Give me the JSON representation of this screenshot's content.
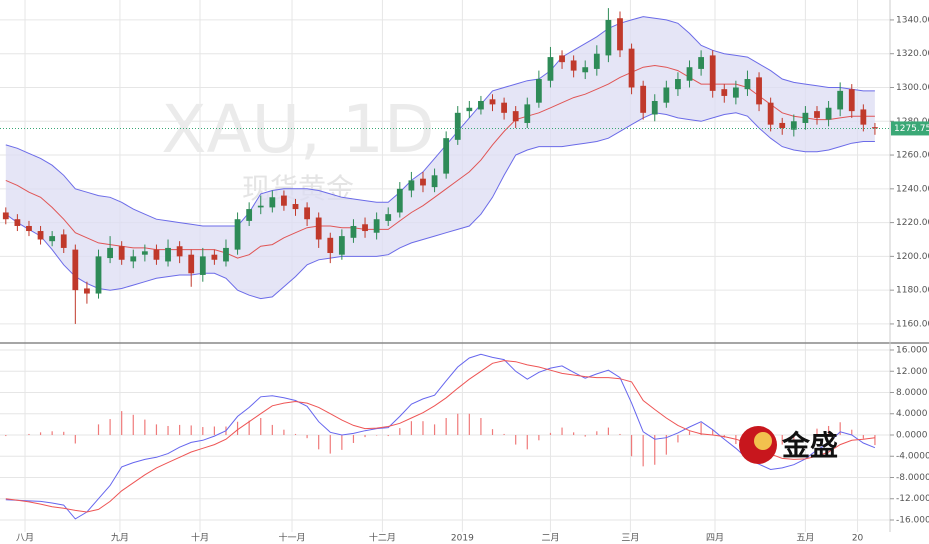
{
  "watermark": {
    "symbol": "XAU, 1D",
    "name": "现货黄金"
  },
  "logo": "金盛",
  "chart_data": [
    {
      "type": "candlestick",
      "xlim": [
        -0.5,
        76.3
      ],
      "ylim": [
        1149.3,
        1351.8
      ],
      "yticks": [
        {
          "value": 1160,
          "label": "1160.00"
        },
        {
          "value": 1180,
          "label": "1180.00"
        },
        {
          "value": 1200,
          "label": "1200.00"
        },
        {
          "value": 1220,
          "label": "1220.00"
        },
        {
          "value": 1240,
          "label": "1240.00"
        },
        {
          "value": 1260,
          "label": "1260.00"
        },
        {
          "value": 1280,
          "label": "1280.00"
        },
        {
          "value": 1300,
          "label": "1300.00"
        },
        {
          "value": 1320,
          "label": "1320.00"
        },
        {
          "value": 1340,
          "label": "1340.00"
        }
      ],
      "grid": true,
      "up_color": "#2e8b57",
      "down_color": "#c0392b",
      "last_price": {
        "value": 1275.75,
        "label": "1275.75",
        "color": "#3aa876"
      },
      "open": [
        1226,
        1222,
        1218,
        1215,
        1209,
        1213,
        1204,
        1181,
        1178,
        1199,
        1206,
        1197,
        1201,
        1204,
        1197,
        1206,
        1201,
        1189,
        1201,
        1197,
        1204,
        1221,
        1229,
        1229,
        1236,
        1231,
        1229,
        1223,
        1211,
        1201,
        1211,
        1219,
        1214,
        1221,
        1226,
        1239,
        1246,
        1241,
        1249,
        1269,
        1286,
        1287,
        1293,
        1291,
        1286,
        1279,
        1291,
        1304,
        1319,
        1316,
        1309,
        1311,
        1319,
        1341,
        1323,
        1301,
        1284,
        1291,
        1299,
        1304,
        1311,
        1319,
        1299,
        1294,
        1299,
        1306,
        1291,
        1279,
        1275,
        1279,
        1286,
        1281,
        1287,
        1299,
        1287,
        1276.5
      ],
      "high": [
        1229,
        1225,
        1221,
        1218,
        1215,
        1216,
        1207,
        1185,
        1204,
        1212,
        1209,
        1204,
        1207,
        1207,
        1210,
        1209,
        1204,
        1205,
        1204,
        1210,
        1226,
        1232,
        1236,
        1239,
        1239,
        1234,
        1232,
        1226,
        1214,
        1216,
        1222,
        1223,
        1226,
        1229,
        1244,
        1250,
        1250,
        1252,
        1274,
        1289,
        1292,
        1295,
        1296,
        1294,
        1289,
        1294,
        1310,
        1324,
        1322,
        1319,
        1316,
        1325,
        1347,
        1345,
        1326,
        1304,
        1296,
        1304,
        1309,
        1316,
        1322,
        1322,
        1302,
        1304,
        1310,
        1309,
        1294,
        1282,
        1284,
        1289,
        1289,
        1292,
        1303,
        1302,
        1290,
        1279
      ],
      "low": [
        1219,
        1215,
        1212,
        1207,
        1206,
        1202,
        1160,
        1172,
        1175,
        1196,
        1195,
        1193,
        1197,
        1195,
        1194,
        1196,
        1182,
        1185,
        1195,
        1194,
        1201,
        1218,
        1225,
        1226,
        1227,
        1224,
        1218,
        1205,
        1196,
        1198,
        1208,
        1211,
        1210,
        1218,
        1223,
        1235,
        1238,
        1238,
        1246,
        1266,
        1282,
        1284,
        1286,
        1281,
        1276,
        1276,
        1288,
        1300,
        1311,
        1306,
        1305,
        1307,
        1315,
        1318,
        1296,
        1281,
        1280,
        1288,
        1295,
        1300,
        1307,
        1294,
        1291,
        1290,
        1295,
        1286,
        1274,
        1272,
        1271,
        1275,
        1278,
        1277,
        1283,
        1282,
        1274,
        1272
      ],
      "close": [
        1222,
        1218,
        1215,
        1210,
        1212,
        1205,
        1180,
        1178,
        1200,
        1205,
        1198,
        1200,
        1203,
        1198,
        1205,
        1200,
        1190,
        1200,
        1198,
        1205,
        1222,
        1228,
        1230,
        1235,
        1230,
        1228,
        1222,
        1210,
        1202,
        1212,
        1218,
        1215,
        1222,
        1225,
        1240,
        1245,
        1242,
        1248,
        1270,
        1285,
        1288,
        1292,
        1290,
        1285,
        1280,
        1290,
        1305,
        1318,
        1315,
        1310,
        1312,
        1320,
        1340,
        1322,
        1300,
        1285,
        1292,
        1300,
        1305,
        1312,
        1318,
        1298,
        1295,
        1300,
        1305,
        1290,
        1278,
        1276,
        1280,
        1285,
        1282,
        1288,
        1298,
        1286,
        1278,
        1275.75
      ],
      "bands": {
        "line_color": "#6b6be8",
        "middle_color": "#e05555",
        "fill": "#dcdcf3",
        "upper": [
          1266,
          1264,
          1261,
          1258,
          1254,
          1248,
          1240,
          1238,
          1236,
          1235,
          1232,
          1228,
          1225,
          1222,
          1221,
          1220,
          1219,
          1218,
          1218,
          1218,
          1218,
          1226,
          1237,
          1239,
          1240,
          1240,
          1240,
          1239,
          1237,
          1235,
          1234,
          1233,
          1232,
          1232,
          1238,
          1245,
          1250,
          1258,
          1266,
          1274,
          1282,
          1290,
          1298,
          1300,
          1302,
          1304,
          1305,
          1310,
          1318,
          1322,
          1326,
          1330,
          1335,
          1338,
          1340,
          1342,
          1341,
          1340,
          1338,
          1332,
          1325,
          1322,
          1320,
          1319,
          1318,
          1314,
          1310,
          1305,
          1303,
          1302,
          1301,
          1300,
          1300,
          1299,
          1298,
          1298
        ],
        "middle": [
          1245,
          1242,
          1238,
          1235,
          1229,
          1222,
          1214,
          1211,
          1208,
          1207,
          1206,
          1205,
          1205,
          1204,
          1204,
          1204,
          1204,
          1204,
          1204,
          1202,
          1199,
          1201,
          1206,
          1207,
          1211,
          1214,
          1217,
          1218,
          1218,
          1217,
          1217,
          1216,
          1216,
          1216,
          1221,
          1226,
          1230,
          1235,
          1240,
          1245,
          1250,
          1257,
          1266,
          1274,
          1281,
          1283,
          1285,
          1288,
          1291,
          1294,
          1296,
          1299,
          1302,
          1306,
          1309,
          1312,
          1313,
          1312,
          1310,
          1306,
          1302,
          1302,
          1302,
          1302,
          1300,
          1295,
          1290,
          1285,
          1283,
          1282,
          1281,
          1281,
          1282,
          1283,
          1283,
          1283
        ],
        "lower": [
          1225,
          1220,
          1216,
          1212,
          1204,
          1195,
          1188,
          1184,
          1181,
          1180,
          1181,
          1183,
          1185,
          1187,
          1188,
          1189,
          1189,
          1190,
          1190,
          1187,
          1180,
          1177,
          1175,
          1176,
          1182,
          1188,
          1195,
          1198,
          1199,
          1200,
          1200,
          1200,
          1200,
          1201,
          1205,
          1208,
          1210,
          1212,
          1214,
          1216,
          1218,
          1225,
          1235,
          1248,
          1260,
          1263,
          1265,
          1265,
          1265,
          1266,
          1267,
          1268,
          1270,
          1274,
          1278,
          1282,
          1285,
          1284,
          1282,
          1281,
          1280,
          1282,
          1284,
          1285,
          1283,
          1276,
          1270,
          1265,
          1263,
          1262,
          1262,
          1263,
          1265,
          1267,
          1268,
          1268
        ]
      }
    },
    {
      "type": "macd",
      "xlim": [
        -0.5,
        76.3
      ],
      "xticks": [
        {
          "value": 1.66,
          "label": "八月"
        },
        {
          "value": 9.85,
          "label": "九月"
        },
        {
          "value": 16.76,
          "label": "十月"
        },
        {
          "value": 24.7,
          "label": "十一月"
        },
        {
          "value": 32.5,
          "label": "十二月"
        },
        {
          "value": 39.4,
          "label": "2019"
        },
        {
          "value": 47,
          "label": "二月"
        },
        {
          "value": 53.9,
          "label": "三月"
        },
        {
          "value": 61.2,
          "label": "四月"
        },
        {
          "value": 69,
          "label": "五月"
        },
        {
          "value": 73.5,
          "label": "20"
        }
      ],
      "ylim": [
        -18.26,
        17.13
      ],
      "yticks": [
        {
          "value": 16,
          "label": "16.000"
        },
        {
          "value": 12,
          "label": "12.000"
        },
        {
          "value": 8,
          "label": "8.0000"
        },
        {
          "value": 4,
          "label": "4.0000"
        },
        {
          "value": 0,
          "label": "0.0000"
        },
        {
          "value": -4,
          "label": "-4.0000"
        },
        {
          "value": -8,
          "label": "-8.0000"
        },
        {
          "value": -12,
          "label": "-12.000"
        },
        {
          "value": -16,
          "label": "-16.000"
        }
      ],
      "grid": true,
      "series": [
        {
          "color": "#6666ee",
          "values": [
            -12.2,
            -12.3,
            -12.4,
            -12.5,
            -12.8,
            -13.2,
            -15.8,
            -14.5,
            -12,
            -9.5,
            -6,
            -5.2,
            -4.6,
            -4.2,
            -3.5,
            -2.3,
            -1.4,
            -1,
            -0.2,
            0.8,
            3.5,
            5.2,
            7.2,
            7.4,
            7,
            6.5,
            5.4,
            2.5,
            0.5,
            0,
            0.3,
            0.8,
            1.2,
            1.4,
            3.5,
            5.8,
            6.8,
            7.5,
            10.2,
            12.8,
            14.5,
            15.2,
            14.6,
            14.2,
            12,
            10.5,
            11.8,
            12.6,
            13,
            11.8,
            10.7,
            11.5,
            12.2,
            10.8,
            6,
            0.6,
            -0.8,
            -0.5,
            0.4,
            1.5,
            2.5,
            1,
            -0.8,
            -2.5,
            -4.5,
            -5.5,
            -6.5,
            -6.2,
            -5.6,
            -4.5,
            -2.8,
            -1.5,
            0.6,
            0,
            -1.5,
            -2.4
          ]
        },
        {
          "color": "#ee5555",
          "values": [
            -12,
            -12.3,
            -12.6,
            -13,
            -13.5,
            -13.8,
            -14.2,
            -14.5,
            -14,
            -12.5,
            -10.5,
            -9,
            -7.5,
            -6.2,
            -5.2,
            -4.2,
            -3.2,
            -2.5,
            -1.8,
            -0.8,
            1,
            2.5,
            4,
            5.5,
            6,
            6.3,
            6,
            5.2,
            4,
            2.8,
            1.8,
            1.2,
            1.3,
            1.6,
            2.2,
            3.2,
            4.2,
            5.5,
            7,
            8.8,
            10.5,
            12,
            13.5,
            14,
            13.8,
            13.2,
            12.8,
            12.2,
            11.6,
            11.3,
            11,
            10.8,
            10.8,
            10.6,
            10,
            6.5,
            4.8,
            3.2,
            1.8,
            0.8,
            0.2,
            0,
            -0.3,
            -0.8,
            -1.5,
            -2.5,
            -3.6,
            -4.4,
            -4.6,
            -4.5,
            -4,
            -3.2,
            -1.8,
            -1,
            -0.8,
            -0.5
          ]
        }
      ],
      "histogram": {
        "color": "#ef7a7a",
        "values": [
          -0.2,
          0,
          0.2,
          0.5,
          0.7,
          0.6,
          -1.6,
          0,
          2,
          3,
          4.5,
          3.8,
          2.9,
          2,
          1.7,
          1.9,
          1.8,
          1.5,
          1.6,
          1.6,
          2.5,
          2.7,
          3.2,
          1.9,
          1,
          0.2,
          -0.6,
          -2.7,
          -3.5,
          -2.8,
          -1.5,
          -0.4,
          -0.1,
          -0.2,
          1.3,
          2.6,
          2.6,
          2,
          3.2,
          4,
          4,
          3.2,
          1.1,
          0.2,
          -1.8,
          -2.7,
          -1,
          0.4,
          1.4,
          0.5,
          -0.3,
          0.7,
          1.4,
          0.2,
          -4,
          -5.9,
          -5.6,
          -3.7,
          -1.4,
          0.7,
          2.3,
          1,
          -0.5,
          -1.7,
          -3,
          -3,
          -2.9,
          -1.8,
          -1,
          0,
          1.2,
          1.7,
          2.4,
          1,
          -0.7,
          -1.9
        ]
      }
    }
  ]
}
